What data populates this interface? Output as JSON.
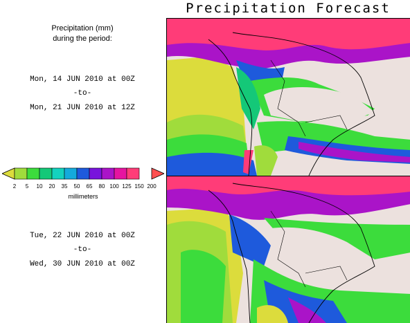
{
  "title": "Precipitation Forecast",
  "header": {
    "line1": "Precipitation (mm)",
    "line2": "during the period:"
  },
  "period1": {
    "start": "Mon, 14 JUN 2010 at 00Z",
    "separator": "-to-",
    "end": "Mon, 21 JUN 2010 at 12Z"
  },
  "period2": {
    "start": "Tue, 22 JUN 2010 at 00Z",
    "separator": "-to-",
    "end": "Wed, 30 JUN 2010 at 00Z"
  },
  "legend": {
    "unit": "millimeters",
    "ticks": [
      "2",
      "5",
      "10",
      "20",
      "35",
      "50",
      "65",
      "80",
      "100",
      "125",
      "150",
      "200"
    ],
    "colors": [
      "#dcdc3c",
      "#a0dc3c",
      "#3cdc3c",
      "#14c878",
      "#14d2be",
      "#14aadc",
      "#1e5adc",
      "#7814dc",
      "#aa14c8",
      "#e614a0",
      "#ff3c78",
      "#ff5050"
    ]
  },
  "colors": {
    "land": "#ece1de",
    "heavy": "#ff3c78",
    "purple": "#aa14c8",
    "blue": "#1e5adc",
    "green": "#3cdc3c",
    "lightgreen": "#a0dc3c",
    "yellow": "#dcdc3c",
    "teal": "#14c878"
  }
}
